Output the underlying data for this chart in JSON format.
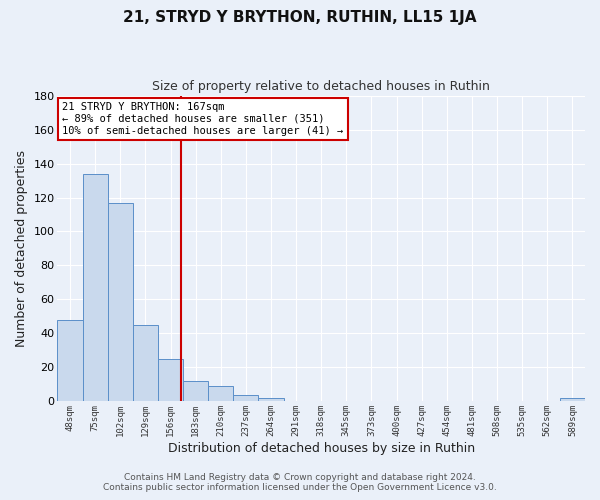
{
  "title": "21, STRYD Y BRYTHON, RUTHIN, LL15 1JA",
  "subtitle": "Size of property relative to detached houses in Ruthin",
  "xlabel": "Distribution of detached houses by size in Ruthin",
  "ylabel": "Number of detached properties",
  "bar_color": "#c9d9ed",
  "bar_edge_color": "#5b8fc9",
  "background_color": "#eaf0f9",
  "grid_color": "#ffffff",
  "vline_color": "#cc0000",
  "tick_labels": [
    "48sqm",
    "75sqm",
    "102sqm",
    "129sqm",
    "156sqm",
    "183sqm",
    "210sqm",
    "237sqm",
    "264sqm",
    "291sqm",
    "318sqm",
    "345sqm",
    "373sqm",
    "400sqm",
    "427sqm",
    "454sqm",
    "481sqm",
    "508sqm",
    "535sqm",
    "562sqm",
    "589sqm"
  ],
  "bar_heights": [
    48,
    134,
    117,
    45,
    25,
    12,
    9,
    4,
    2,
    0,
    0,
    0,
    0,
    0,
    0,
    0,
    0,
    0,
    0,
    0,
    2
  ],
  "ylim": [
    0,
    180
  ],
  "yticks": [
    0,
    20,
    40,
    60,
    80,
    100,
    120,
    140,
    160,
    180
  ],
  "vline_x": 4.407,
  "annotation_title": "21 STRYD Y BRYTHON: 167sqm",
  "annotation_line1": "← 89% of detached houses are smaller (351)",
  "annotation_line2": "10% of semi-detached houses are larger (41) →",
  "footer1": "Contains HM Land Registry data © Crown copyright and database right 2024.",
  "footer2": "Contains public sector information licensed under the Open Government Licence v3.0.",
  "title_fontsize": 11,
  "subtitle_fontsize": 9,
  "footer_fontsize": 6.5
}
